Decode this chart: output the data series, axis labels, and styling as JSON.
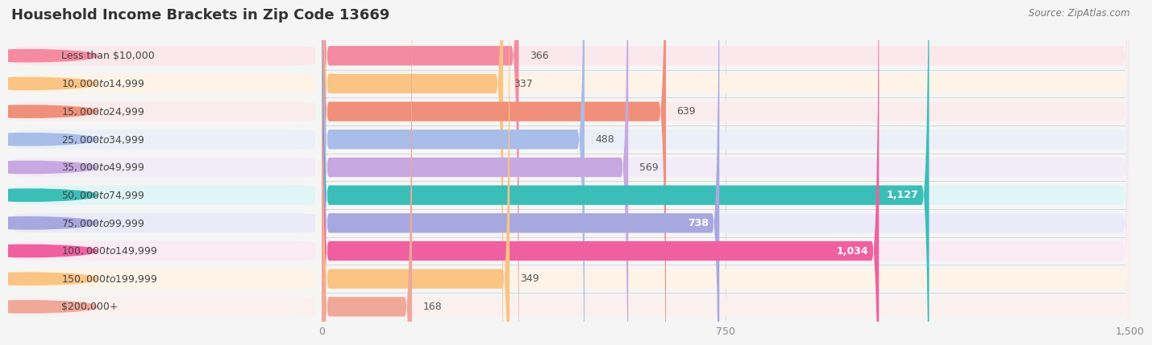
{
  "title": "Household Income Brackets in Zip Code 13669",
  "source": "Source: ZipAtlas.com",
  "categories": [
    "Less than $10,000",
    "$10,000 to $14,999",
    "$15,000 to $24,999",
    "$25,000 to $34,999",
    "$35,000 to $49,999",
    "$50,000 to $74,999",
    "$75,000 to $99,999",
    "$100,000 to $149,999",
    "$150,000 to $199,999",
    "$200,000+"
  ],
  "values": [
    366,
    337,
    639,
    488,
    569,
    1127,
    738,
    1034,
    349,
    168
  ],
  "bar_colors": [
    "#F48BA0",
    "#F9C484",
    "#F0907A",
    "#A8BDE8",
    "#C8A8E0",
    "#3BBDB8",
    "#A8A8E0",
    "#F060A0",
    "#F9C484",
    "#F0A898"
  ],
  "bar_bg_colors": [
    "#FAE8EC",
    "#FDF4E7",
    "#FAECEC",
    "#EBF0F8",
    "#F2EBF8",
    "#E0F5F5",
    "#EAEAF8",
    "#FAEAF4",
    "#FDF4E7",
    "#FAF0EE"
  ],
  "xlim": [
    0,
    1500
  ],
  "xticks": [
    0,
    750,
    1500
  ],
  "background_color": "#F5F5F5",
  "title_fontsize": 13,
  "bar_height": 0.7,
  "label_fontsize": 9,
  "value_fontsize": 9,
  "value_threshold": 700
}
